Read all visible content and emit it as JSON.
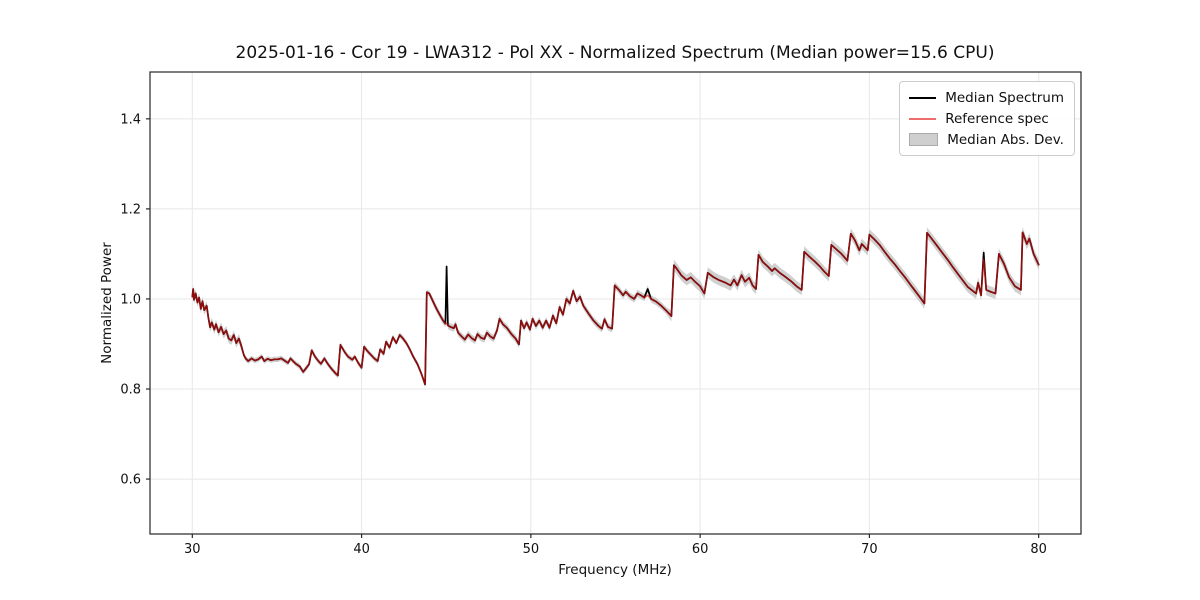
{
  "title": "2025-01-16 - Cor 19 - LWA312 - Pol XX - Normalized Spectrum (Median power=15.6 CPU)",
  "axes": {
    "x_label": "Frequency (MHz)",
    "y_label": "Normalized Power",
    "x_ticks": [
      30,
      40,
      50,
      60,
      70,
      80
    ],
    "y_ticks": [
      0.6,
      0.8,
      1.0,
      1.2,
      1.4
    ]
  },
  "legend": {
    "items": [
      {
        "label": "Median Spectrum",
        "swatch": "line",
        "color": "#000000"
      },
      {
        "label": "Reference spec",
        "swatch": "line",
        "color": "#ee6c6c"
      },
      {
        "label": "Median Abs. Dev.",
        "swatch": "patch",
        "color": "#cfcfcf",
        "edge_color": "#ababab"
      }
    ]
  },
  "chart_data": {
    "type": "line",
    "title": "2025-01-16 - Cor 19 - LWA312 - Pol XX - Normalized Spectrum (Median power=15.6 CPU)",
    "xlabel": "Frequency (MHz)",
    "ylabel": "Normalized Power",
    "xlim": [
      27.5,
      82.5
    ],
    "ylim": [
      0.478,
      1.504
    ],
    "x_ticks": [
      30,
      40,
      50,
      60,
      70,
      80
    ],
    "y_ticks": [
      0.6,
      0.8,
      1.0,
      1.2,
      1.4
    ],
    "grid": true,
    "legend_position": "upper right",
    "series": [
      {
        "name": "Median Spectrum",
        "color": "#000000",
        "points": [
          [
            30.0,
            1.005
          ],
          [
            30.05,
            1.022
          ],
          [
            30.1,
            0.998
          ],
          [
            30.2,
            1.012
          ],
          [
            30.3,
            0.992
          ],
          [
            30.4,
            1.003
          ],
          [
            30.5,
            0.978
          ],
          [
            30.6,
            0.995
          ],
          [
            30.7,
            0.975
          ],
          [
            30.85,
            0.985
          ],
          [
            30.95,
            0.958
          ],
          [
            31.05,
            0.937
          ],
          [
            31.15,
            0.948
          ],
          [
            31.3,
            0.932
          ],
          [
            31.4,
            0.944
          ],
          [
            31.55,
            0.926
          ],
          [
            31.7,
            0.938
          ],
          [
            31.85,
            0.922
          ],
          [
            32.0,
            0.93
          ],
          [
            32.15,
            0.912
          ],
          [
            32.3,
            0.908
          ],
          [
            32.45,
            0.92
          ],
          [
            32.6,
            0.902
          ],
          [
            32.75,
            0.912
          ],
          [
            32.9,
            0.895
          ],
          [
            33.05,
            0.875
          ],
          [
            33.15,
            0.868
          ],
          [
            33.3,
            0.862
          ],
          [
            33.5,
            0.868
          ],
          [
            33.7,
            0.863
          ],
          [
            33.9,
            0.866
          ],
          [
            34.1,
            0.872
          ],
          [
            34.25,
            0.862
          ],
          [
            34.45,
            0.867
          ],
          [
            34.65,
            0.864
          ],
          [
            34.85,
            0.866
          ],
          [
            35.05,
            0.866
          ],
          [
            35.25,
            0.868
          ],
          [
            35.45,
            0.863
          ],
          [
            35.65,
            0.858
          ],
          [
            35.8,
            0.868
          ],
          [
            35.95,
            0.862
          ],
          [
            36.15,
            0.855
          ],
          [
            36.35,
            0.85
          ],
          [
            36.55,
            0.838
          ],
          [
            36.7,
            0.845
          ],
          [
            36.9,
            0.855
          ],
          [
            37.05,
            0.886
          ],
          [
            37.25,
            0.872
          ],
          [
            37.45,
            0.862
          ],
          [
            37.6,
            0.856
          ],
          [
            37.8,
            0.868
          ],
          [
            38.0,
            0.856
          ],
          [
            38.2,
            0.846
          ],
          [
            38.45,
            0.835
          ],
          [
            38.6,
            0.83
          ],
          [
            38.75,
            0.898
          ],
          [
            39.0,
            0.882
          ],
          [
            39.2,
            0.872
          ],
          [
            39.45,
            0.865
          ],
          [
            39.6,
            0.872
          ],
          [
            39.8,
            0.858
          ],
          [
            40.0,
            0.847
          ],
          [
            40.15,
            0.894
          ],
          [
            40.35,
            0.884
          ],
          [
            40.55,
            0.876
          ],
          [
            40.75,
            0.868
          ],
          [
            40.95,
            0.862
          ],
          [
            41.1,
            0.888
          ],
          [
            41.3,
            0.878
          ],
          [
            41.45,
            0.905
          ],
          [
            41.65,
            0.892
          ],
          [
            41.85,
            0.915
          ],
          [
            42.05,
            0.902
          ],
          [
            42.25,
            0.92
          ],
          [
            42.45,
            0.912
          ],
          [
            42.65,
            0.902
          ],
          [
            42.85,
            0.888
          ],
          [
            43.05,
            0.872
          ],
          [
            43.3,
            0.855
          ],
          [
            43.55,
            0.832
          ],
          [
            43.75,
            0.81
          ],
          [
            43.85,
            1.015
          ],
          [
            44.0,
            1.012
          ],
          [
            44.2,
            0.996
          ],
          [
            44.4,
            0.98
          ],
          [
            44.6,
            0.966
          ],
          [
            44.8,
            0.953
          ],
          [
            44.95,
            0.945
          ],
          [
            45.02,
            1.072
          ],
          [
            45.1,
            0.941
          ],
          [
            45.25,
            0.938
          ],
          [
            45.45,
            0.935
          ],
          [
            45.55,
            0.944
          ],
          [
            45.7,
            0.925
          ],
          [
            45.9,
            0.917
          ],
          [
            46.1,
            0.91
          ],
          [
            46.3,
            0.921
          ],
          [
            46.5,
            0.913
          ],
          [
            46.7,
            0.908
          ],
          [
            46.85,
            0.922
          ],
          [
            47.05,
            0.914
          ],
          [
            47.25,
            0.911
          ],
          [
            47.4,
            0.925
          ],
          [
            47.6,
            0.917
          ],
          [
            47.8,
            0.912
          ],
          [
            48.0,
            0.93
          ],
          [
            48.15,
            0.956
          ],
          [
            48.35,
            0.944
          ],
          [
            48.6,
            0.935
          ],
          [
            48.85,
            0.922
          ],
          [
            49.1,
            0.912
          ],
          [
            49.3,
            0.899
          ],
          [
            49.42,
            0.952
          ],
          [
            49.6,
            0.935
          ],
          [
            49.75,
            0.948
          ],
          [
            49.95,
            0.932
          ],
          [
            50.1,
            0.956
          ],
          [
            50.3,
            0.94
          ],
          [
            50.5,
            0.952
          ],
          [
            50.7,
            0.936
          ],
          [
            50.9,
            0.952
          ],
          [
            51.1,
            0.936
          ],
          [
            51.3,
            0.963
          ],
          [
            51.5,
            0.946
          ],
          [
            51.7,
            0.982
          ],
          [
            51.9,
            0.965
          ],
          [
            52.1,
            1.0
          ],
          [
            52.3,
            0.99
          ],
          [
            52.5,
            1.018
          ],
          [
            52.7,
            0.995
          ],
          [
            52.9,
            1.005
          ],
          [
            53.1,
            0.985
          ],
          [
            53.4,
            0.968
          ],
          [
            53.7,
            0.952
          ],
          [
            54.0,
            0.94
          ],
          [
            54.2,
            0.934
          ],
          [
            54.35,
            0.955
          ],
          [
            54.55,
            0.938
          ],
          [
            54.8,
            0.934
          ],
          [
            54.95,
            1.03
          ],
          [
            55.2,
            1.02
          ],
          [
            55.45,
            1.008
          ],
          [
            55.6,
            1.016
          ],
          [
            55.85,
            1.006
          ],
          [
            56.1,
            1.0
          ],
          [
            56.3,
            1.012
          ],
          [
            56.5,
            1.008
          ],
          [
            56.7,
            1.003
          ],
          [
            56.9,
            1.022
          ],
          [
            57.1,
            1.0
          ],
          [
            57.4,
            0.994
          ],
          [
            57.7,
            0.985
          ],
          [
            58.0,
            0.974
          ],
          [
            58.3,
            0.962
          ],
          [
            58.45,
            1.075
          ],
          [
            58.6,
            1.068
          ],
          [
            58.9,
            1.052
          ],
          [
            59.2,
            1.042
          ],
          [
            59.45,
            1.048
          ],
          [
            59.7,
            1.038
          ],
          [
            60.0,
            1.028
          ],
          [
            60.25,
            1.012
          ],
          [
            60.45,
            1.058
          ],
          [
            60.8,
            1.048
          ],
          [
            61.1,
            1.042
          ],
          [
            61.5,
            1.036
          ],
          [
            61.8,
            1.03
          ],
          [
            62.0,
            1.043
          ],
          [
            62.2,
            1.03
          ],
          [
            62.45,
            1.053
          ],
          [
            62.65,
            1.038
          ],
          [
            62.9,
            1.047
          ],
          [
            63.1,
            1.03
          ],
          [
            63.3,
            1.022
          ],
          [
            63.45,
            1.098
          ],
          [
            63.7,
            1.082
          ],
          [
            64.0,
            1.072
          ],
          [
            64.25,
            1.062
          ],
          [
            64.4,
            1.068
          ],
          [
            64.7,
            1.058
          ],
          [
            65.0,
            1.05
          ],
          [
            65.35,
            1.04
          ],
          [
            65.7,
            1.028
          ],
          [
            66.0,
            1.02
          ],
          [
            66.15,
            1.105
          ],
          [
            66.45,
            1.094
          ],
          [
            66.75,
            1.084
          ],
          [
            67.05,
            1.073
          ],
          [
            67.35,
            1.06
          ],
          [
            67.6,
            1.051
          ],
          [
            67.75,
            1.12
          ],
          [
            68.05,
            1.11
          ],
          [
            68.35,
            1.1
          ],
          [
            68.7,
            1.085
          ],
          [
            68.9,
            1.145
          ],
          [
            69.15,
            1.13
          ],
          [
            69.4,
            1.108
          ],
          [
            69.55,
            1.122
          ],
          [
            69.75,
            1.114
          ],
          [
            69.9,
            1.108
          ],
          [
            70.0,
            1.143
          ],
          [
            70.3,
            1.132
          ],
          [
            70.6,
            1.12
          ],
          [
            70.9,
            1.105
          ],
          [
            71.2,
            1.09
          ],
          [
            71.5,
            1.077
          ],
          [
            71.8,
            1.062
          ],
          [
            72.1,
            1.048
          ],
          [
            72.4,
            1.033
          ],
          [
            72.7,
            1.018
          ],
          [
            73.0,
            1.003
          ],
          [
            73.25,
            0.99
          ],
          [
            73.4,
            1.147
          ],
          [
            73.7,
            1.133
          ],
          [
            74.0,
            1.118
          ],
          [
            74.3,
            1.103
          ],
          [
            74.6,
            1.088
          ],
          [
            74.9,
            1.072
          ],
          [
            75.2,
            1.057
          ],
          [
            75.5,
            1.042
          ],
          [
            75.8,
            1.027
          ],
          [
            76.1,
            1.018
          ],
          [
            76.3,
            1.012
          ],
          [
            76.42,
            1.036
          ],
          [
            76.6,
            1.008
          ],
          [
            76.75,
            1.103
          ],
          [
            76.9,
            1.02
          ],
          [
            77.15,
            1.016
          ],
          [
            77.45,
            1.012
          ],
          [
            77.65,
            1.1
          ],
          [
            77.95,
            1.078
          ],
          [
            78.25,
            1.048
          ],
          [
            78.6,
            1.028
          ],
          [
            78.95,
            1.02
          ],
          [
            79.05,
            1.148
          ],
          [
            79.3,
            1.122
          ],
          [
            79.45,
            1.134
          ],
          [
            79.7,
            1.1
          ],
          [
            80.0,
            1.076
          ]
        ]
      },
      {
        "name": "Reference spec",
        "color": "#dd1111",
        "opacity": 0.65,
        "same_as": "Median Spectrum",
        "overrides": [
          [
            45.02,
            0.945
          ],
          [
            56.9,
            1.008
          ],
          [
            76.75,
            1.088
          ]
        ]
      },
      {
        "name": "Median Abs. Dev.",
        "style": "band",
        "color": "#aaaaaa",
        "opacity": 0.55,
        "halfwidth_segments": [
          [
            30,
            33,
            0.01
          ],
          [
            33,
            44,
            0.006
          ],
          [
            44,
            58,
            0.008
          ],
          [
            58,
            80,
            0.012
          ]
        ]
      }
    ]
  }
}
